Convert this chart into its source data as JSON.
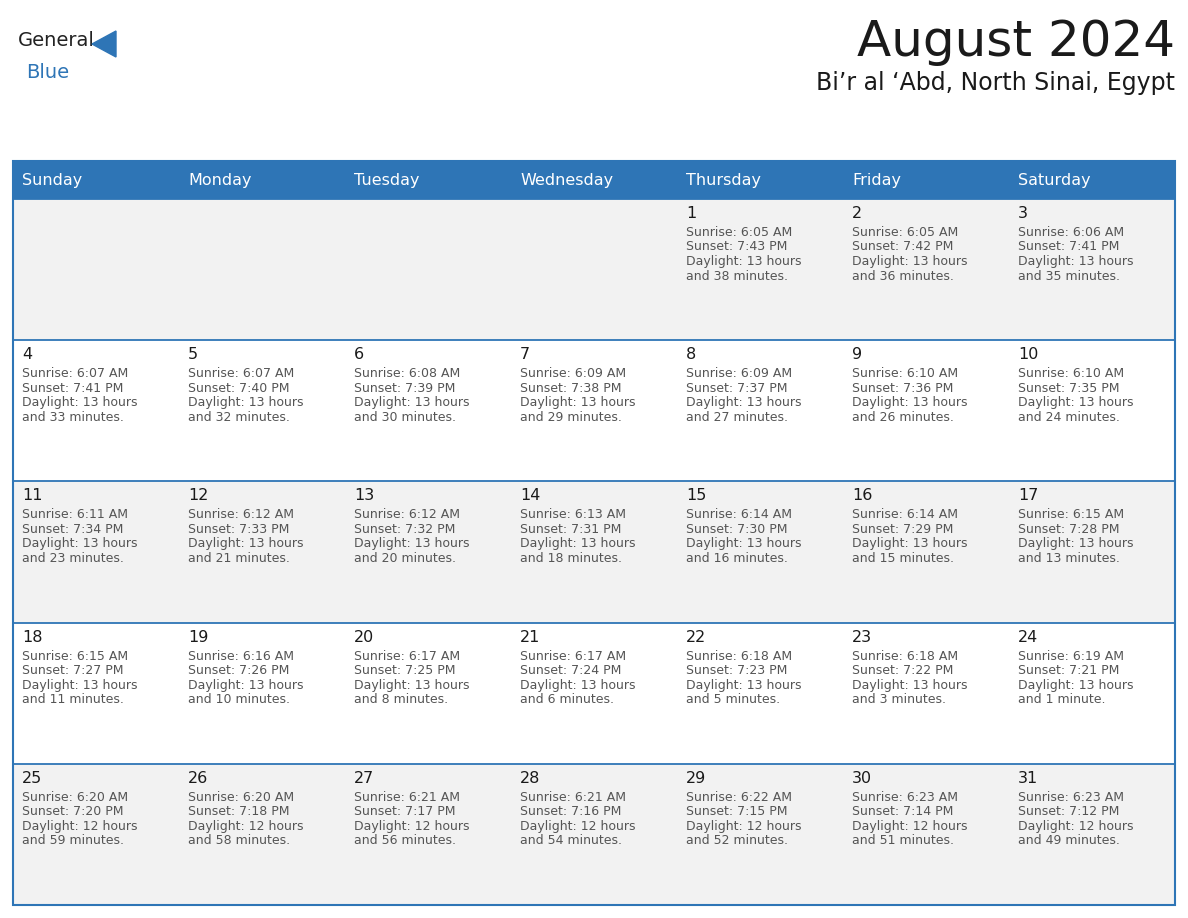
{
  "title": "August 2024",
  "subtitle": "Bi’r al ‘Abd, North Sinai, Egypt",
  "days_of_week": [
    "Sunday",
    "Monday",
    "Tuesday",
    "Wednesday",
    "Thursday",
    "Friday",
    "Saturday"
  ],
  "header_bg": "#2E75B6",
  "header_text": "#FFFFFF",
  "cell_bg_odd": "#F2F2F2",
  "cell_bg_even": "#FFFFFF",
  "info_text_color": "#555555",
  "border_color": "#2E75B6",
  "logo_general_color": "#222222",
  "logo_blue_color": "#2E75B6",
  "calendar_data": [
    [
      {
        "day": "",
        "sunrise": "",
        "sunset": "",
        "daylight": ""
      },
      {
        "day": "",
        "sunrise": "",
        "sunset": "",
        "daylight": ""
      },
      {
        "day": "",
        "sunrise": "",
        "sunset": "",
        "daylight": ""
      },
      {
        "day": "",
        "sunrise": "",
        "sunset": "",
        "daylight": ""
      },
      {
        "day": "1",
        "sunrise": "6:05 AM",
        "sunset": "7:43 PM",
        "daylight": "13 hours and 38 minutes."
      },
      {
        "day": "2",
        "sunrise": "6:05 AM",
        "sunset": "7:42 PM",
        "daylight": "13 hours and 36 minutes."
      },
      {
        "day": "3",
        "sunrise": "6:06 AM",
        "sunset": "7:41 PM",
        "daylight": "13 hours and 35 minutes."
      }
    ],
    [
      {
        "day": "4",
        "sunrise": "6:07 AM",
        "sunset": "7:41 PM",
        "daylight": "13 hours and 33 minutes."
      },
      {
        "day": "5",
        "sunrise": "6:07 AM",
        "sunset": "7:40 PM",
        "daylight": "13 hours and 32 minutes."
      },
      {
        "day": "6",
        "sunrise": "6:08 AM",
        "sunset": "7:39 PM",
        "daylight": "13 hours and 30 minutes."
      },
      {
        "day": "7",
        "sunrise": "6:09 AM",
        "sunset": "7:38 PM",
        "daylight": "13 hours and 29 minutes."
      },
      {
        "day": "8",
        "sunrise": "6:09 AM",
        "sunset": "7:37 PM",
        "daylight": "13 hours and 27 minutes."
      },
      {
        "day": "9",
        "sunrise": "6:10 AM",
        "sunset": "7:36 PM",
        "daylight": "13 hours and 26 minutes."
      },
      {
        "day": "10",
        "sunrise": "6:10 AM",
        "sunset": "7:35 PM",
        "daylight": "13 hours and 24 minutes."
      }
    ],
    [
      {
        "day": "11",
        "sunrise": "6:11 AM",
        "sunset": "7:34 PM",
        "daylight": "13 hours and 23 minutes."
      },
      {
        "day": "12",
        "sunrise": "6:12 AM",
        "sunset": "7:33 PM",
        "daylight": "13 hours and 21 minutes."
      },
      {
        "day": "13",
        "sunrise": "6:12 AM",
        "sunset": "7:32 PM",
        "daylight": "13 hours and 20 minutes."
      },
      {
        "day": "14",
        "sunrise": "6:13 AM",
        "sunset": "7:31 PM",
        "daylight": "13 hours and 18 minutes."
      },
      {
        "day": "15",
        "sunrise": "6:14 AM",
        "sunset": "7:30 PM",
        "daylight": "13 hours and 16 minutes."
      },
      {
        "day": "16",
        "sunrise": "6:14 AM",
        "sunset": "7:29 PM",
        "daylight": "13 hours and 15 minutes."
      },
      {
        "day": "17",
        "sunrise": "6:15 AM",
        "sunset": "7:28 PM",
        "daylight": "13 hours and 13 minutes."
      }
    ],
    [
      {
        "day": "18",
        "sunrise": "6:15 AM",
        "sunset": "7:27 PM",
        "daylight": "13 hours and 11 minutes."
      },
      {
        "day": "19",
        "sunrise": "6:16 AM",
        "sunset": "7:26 PM",
        "daylight": "13 hours and 10 minutes."
      },
      {
        "day": "20",
        "sunrise": "6:17 AM",
        "sunset": "7:25 PM",
        "daylight": "13 hours and 8 minutes."
      },
      {
        "day": "21",
        "sunrise": "6:17 AM",
        "sunset": "7:24 PM",
        "daylight": "13 hours and 6 minutes."
      },
      {
        "day": "22",
        "sunrise": "6:18 AM",
        "sunset": "7:23 PM",
        "daylight": "13 hours and 5 minutes."
      },
      {
        "day": "23",
        "sunrise": "6:18 AM",
        "sunset": "7:22 PM",
        "daylight": "13 hours and 3 minutes."
      },
      {
        "day": "24",
        "sunrise": "6:19 AM",
        "sunset": "7:21 PM",
        "daylight": "13 hours and 1 minute."
      }
    ],
    [
      {
        "day": "25",
        "sunrise": "6:20 AM",
        "sunset": "7:20 PM",
        "daylight": "12 hours and 59 minutes."
      },
      {
        "day": "26",
        "sunrise": "6:20 AM",
        "sunset": "7:18 PM",
        "daylight": "12 hours and 58 minutes."
      },
      {
        "day": "27",
        "sunrise": "6:21 AM",
        "sunset": "7:17 PM",
        "daylight": "12 hours and 56 minutes."
      },
      {
        "day": "28",
        "sunrise": "6:21 AM",
        "sunset": "7:16 PM",
        "daylight": "12 hours and 54 minutes."
      },
      {
        "day": "29",
        "sunrise": "6:22 AM",
        "sunset": "7:15 PM",
        "daylight": "12 hours and 52 minutes."
      },
      {
        "day": "30",
        "sunrise": "6:23 AM",
        "sunset": "7:14 PM",
        "daylight": "12 hours and 51 minutes."
      },
      {
        "day": "31",
        "sunrise": "6:23 AM",
        "sunset": "7:12 PM",
        "daylight": "12 hours and 49 minutes."
      }
    ]
  ]
}
